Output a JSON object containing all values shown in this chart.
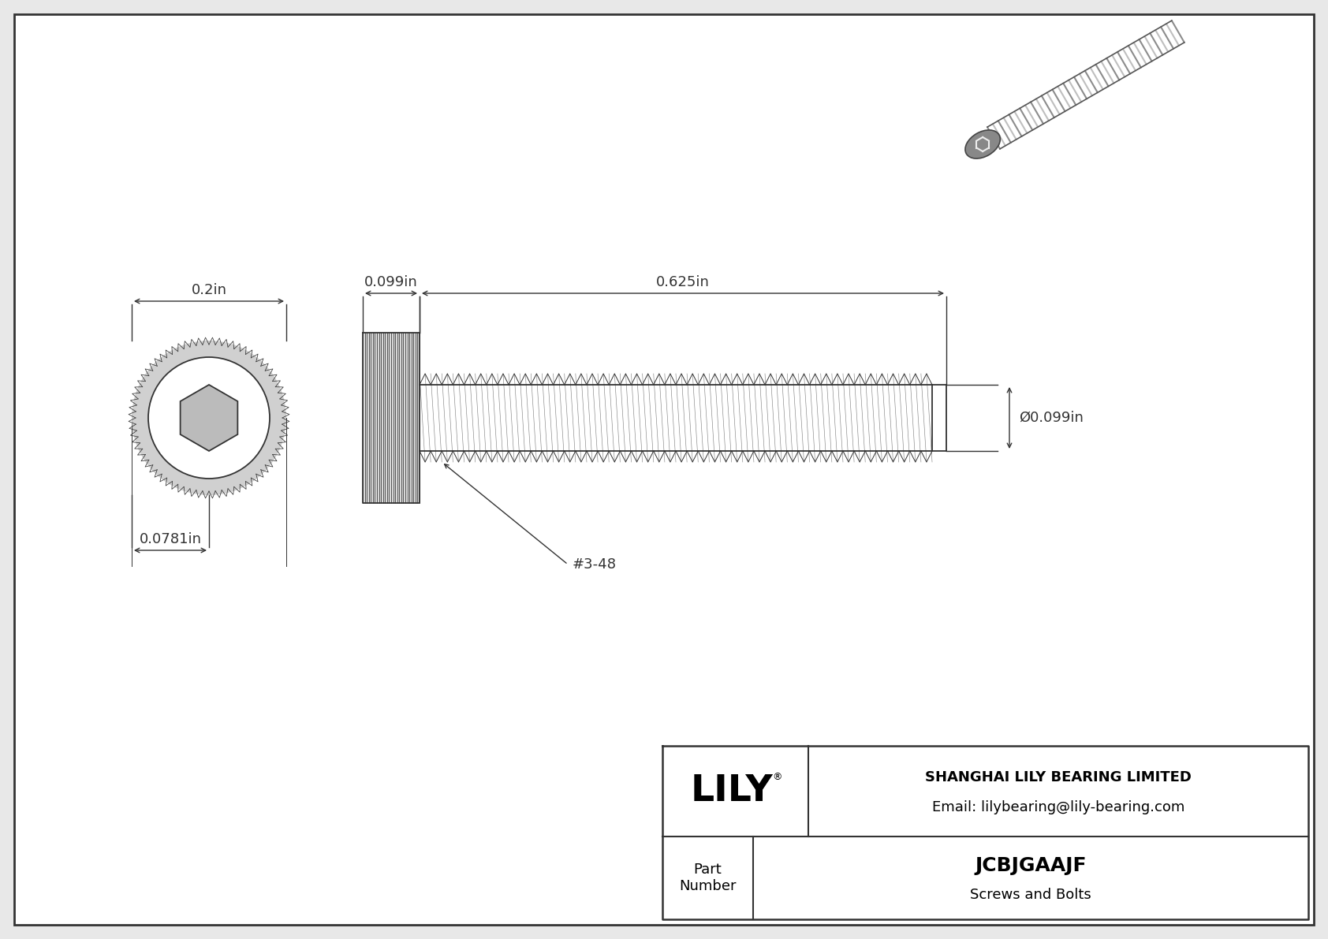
{
  "bg_color": "#e8e8e8",
  "border_color": "#333333",
  "line_color": "#333333",
  "title": "JCBJGAAJF",
  "subtitle": "Screws and Bolts",
  "company_name": "SHANGHAI LILY BEARING LIMITED",
  "company_email": "Email: lilybearing@lily-bearing.com",
  "part_label": "Part\nNumber",
  "logo_text": "LILY",
  "logo_reg": "®",
  "dim_head_width": "0.2in",
  "dim_head_height": "0.0781in",
  "dim_body_length": "0.625in",
  "dim_head_length": "0.099in",
  "dim_diameter": "Ø0.099in",
  "thread_label": "#3-48",
  "inner_bg": "white",
  "lw_main": 1.3,
  "lw_thin": 0.7,
  "lw_dim": 1.0,
  "fontsize_dim": 13,
  "fontsize_tb_large": 18,
  "fontsize_tb_med": 13,
  "fontsize_tb_company": 13,
  "fontsize_logo": 34
}
